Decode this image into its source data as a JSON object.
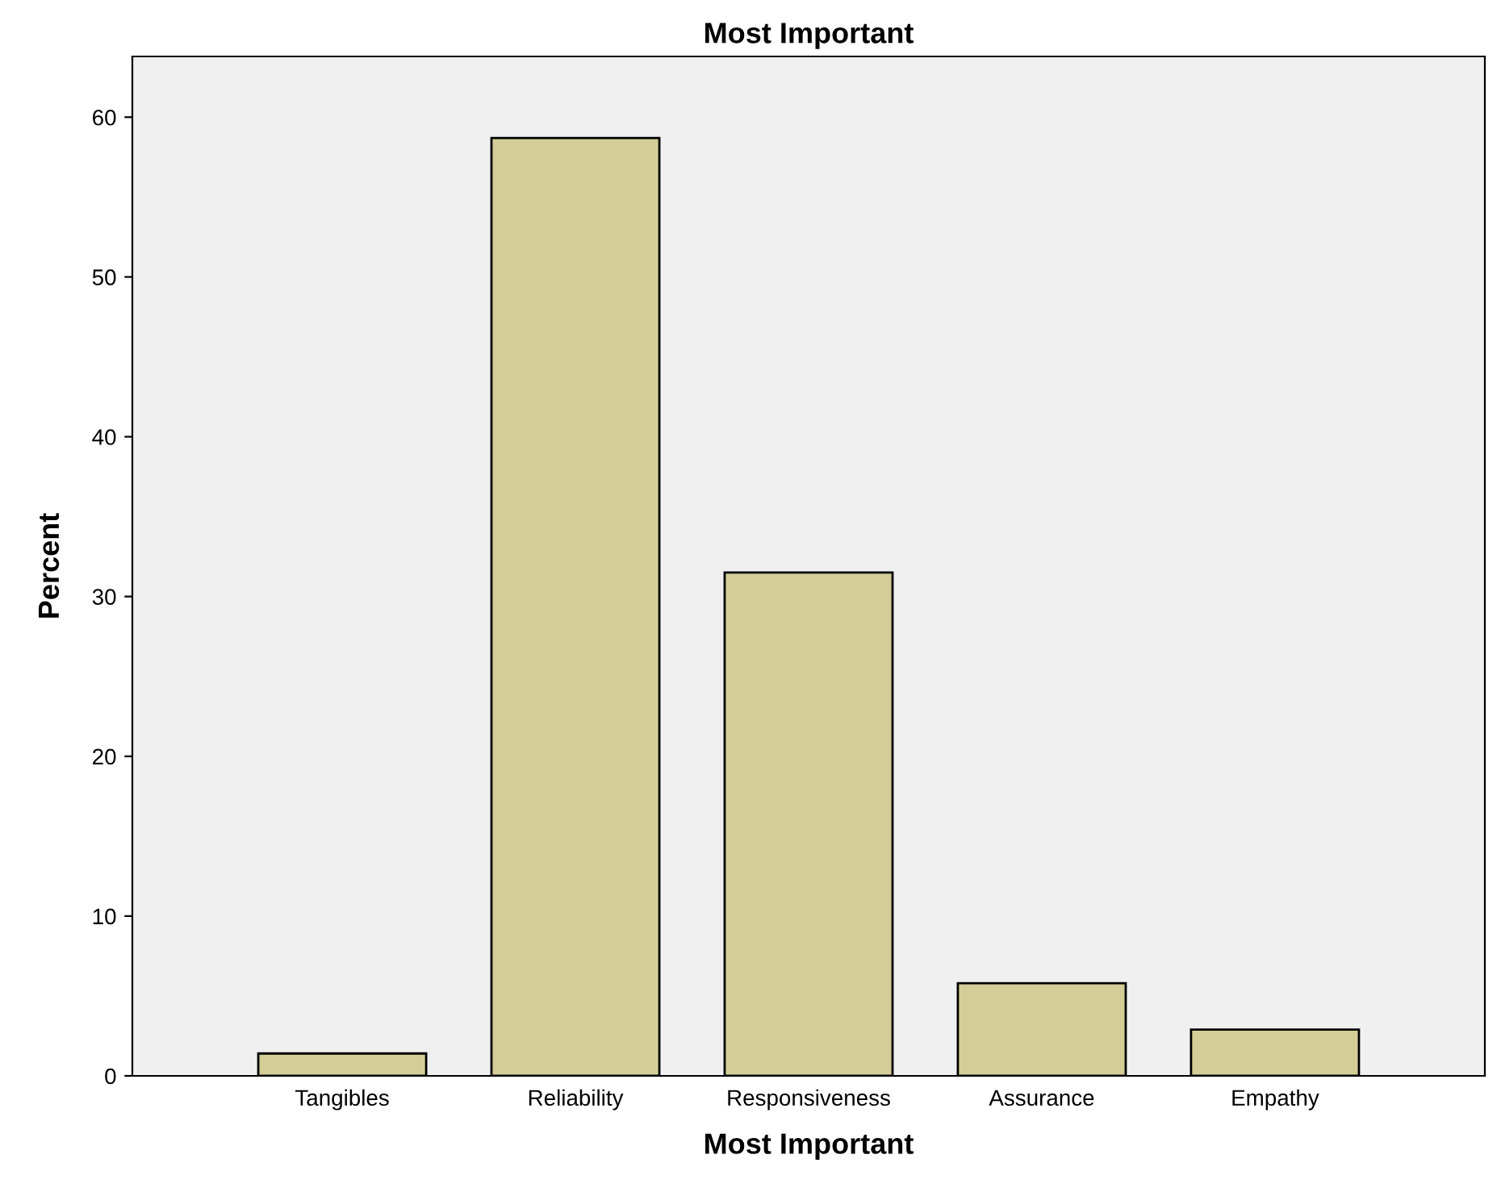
{
  "chart_data": {
    "type": "bar",
    "title": "Most Important",
    "xlabel": "Most Important",
    "ylabel": "Percent",
    "categories": [
      "Tangibles",
      "Reliability",
      "Responsiveness",
      "Assurance",
      "Empathy"
    ],
    "values": [
      1.4,
      58.7,
      31.5,
      5.8,
      2.9
    ],
    "color": "#d3ce97",
    "ylim": [
      0,
      63.8
    ],
    "yticks": [
      0,
      10,
      20,
      30,
      40,
      50,
      60
    ],
    "grid": false,
    "legend": false
  }
}
